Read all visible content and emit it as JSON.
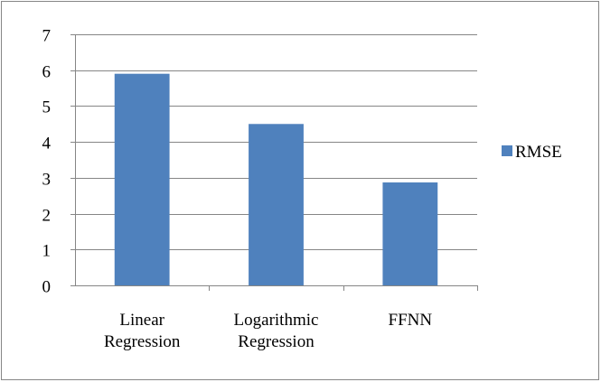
{
  "chart_data": {
    "type": "bar",
    "categories": [
      [
        "Linear",
        "Regression"
      ],
      [
        "Logarithmic",
        "Regression"
      ],
      [
        "FFNN"
      ]
    ],
    "series": [
      {
        "name": "RMSE",
        "values": [
          5.9,
          4.5,
          2.87
        ],
        "color": "#4f81bd"
      }
    ],
    "title": "",
    "xlabel": "",
    "ylabel": "",
    "ylim": [
      0,
      7
    ],
    "yticks": [
      "0",
      "1",
      "2",
      "3",
      "4",
      "5",
      "6",
      "7"
    ],
    "grid": true,
    "legend_position": "right"
  },
  "colors": {
    "bar": "#4f81bd",
    "grid": "#868686",
    "axis": "#868686",
    "frame": "#868686"
  }
}
